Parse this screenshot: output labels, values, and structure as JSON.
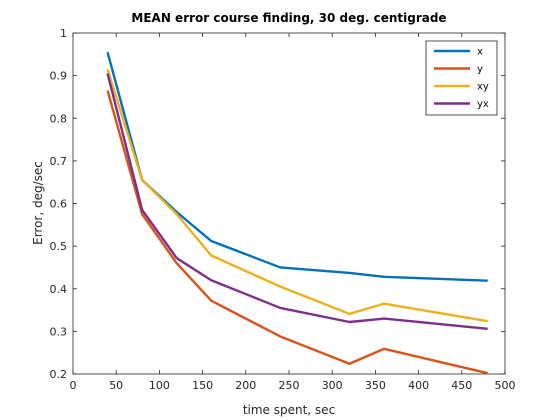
{
  "chart_data": {
    "type": "line",
    "title": "MEAN error course finding, 30 deg. centigrade",
    "xlabel": "time spent, sec",
    "ylabel": "Error, deg/sec",
    "xlim": [
      0,
      500
    ],
    "ylim": [
      0.2,
      1.0
    ],
    "xticks": [
      0,
      50,
      100,
      150,
      200,
      250,
      300,
      350,
      400,
      450,
      500
    ],
    "yticks": [
      0.2,
      0.3,
      0.4,
      0.5,
      0.6,
      0.7,
      0.8,
      0.9,
      1.0
    ],
    "xtick_labels": [
      "0",
      "50",
      "100",
      "150",
      "200",
      "250",
      "300",
      "350",
      "400",
      "450",
      "500"
    ],
    "ytick_labels": [
      "0.2",
      "0.3",
      "0.4",
      "0.5",
      "0.6",
      "0.7",
      "0.8",
      "0.9",
      "1"
    ],
    "grid": false,
    "legend_position": "top-right",
    "x": [
      40,
      80,
      120,
      160,
      240,
      320,
      360,
      480
    ],
    "series": [
      {
        "name": "x",
        "color": "#0072BD",
        "values": [
          0.955,
          0.655,
          0.58,
          0.512,
          0.45,
          0.437,
          0.428,
          0.419
        ]
      },
      {
        "name": "y",
        "color": "#D95319",
        "values": [
          0.865,
          0.575,
          0.46,
          0.372,
          0.288,
          0.224,
          0.259,
          0.202
        ]
      },
      {
        "name": "xy",
        "color": "#EDB120",
        "values": [
          0.915,
          0.655,
          0.575,
          0.478,
          0.405,
          0.341,
          0.365,
          0.324
        ]
      },
      {
        "name": "yx",
        "color": "#7E2F8E",
        "values": [
          0.905,
          0.585,
          0.472,
          0.42,
          0.355,
          0.322,
          0.33,
          0.306
        ]
      }
    ]
  }
}
